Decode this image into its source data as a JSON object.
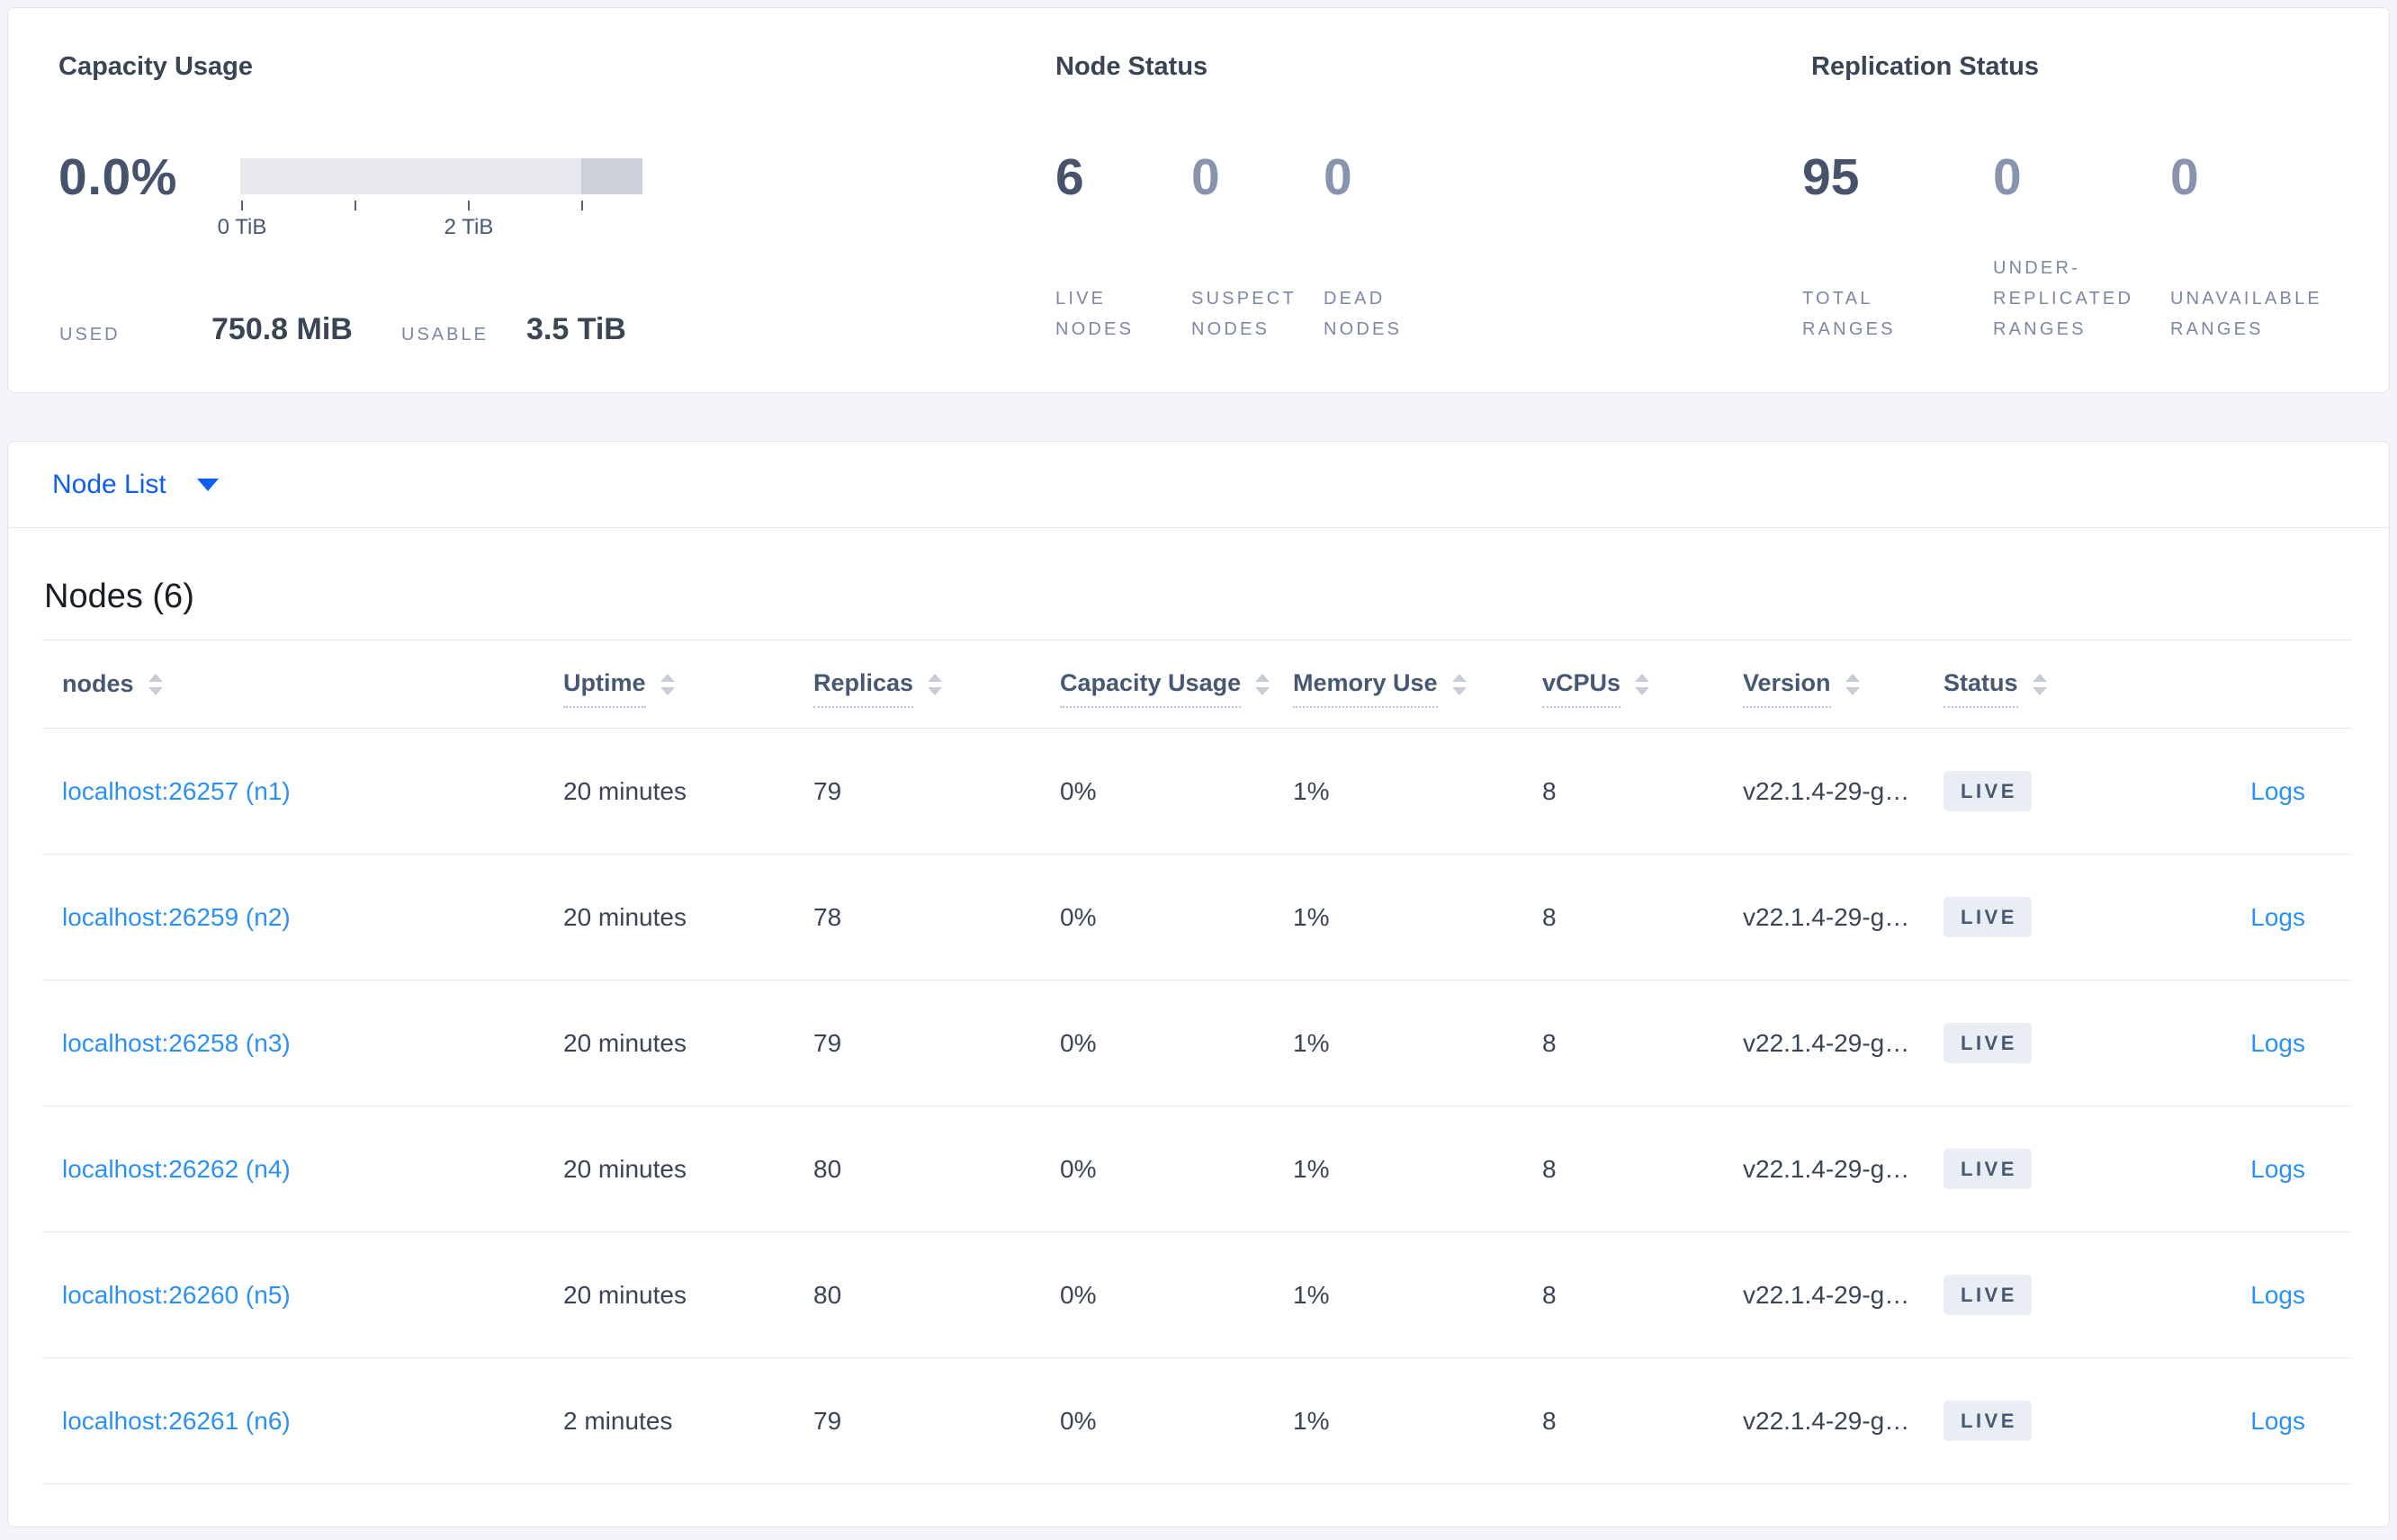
{
  "summary": {
    "capacity": {
      "title": "Capacity Usage",
      "percent": "0.0%",
      "axis_tick_labels": [
        "0 TiB",
        "2 TiB"
      ],
      "used_label": "USED",
      "used_value": "750.8 MiB",
      "usable_label": "USABLE",
      "usable_value": "3.5 TiB"
    },
    "node_status": {
      "title": "Node Status",
      "stats": [
        {
          "value": "6",
          "label": "LIVE\nNODES"
        },
        {
          "value": "0",
          "label": "SUSPECT\nNODES"
        },
        {
          "value": "0",
          "label": "DEAD\nNODES"
        }
      ]
    },
    "replication_status": {
      "title": "Replication Status",
      "stats": [
        {
          "value": "95",
          "label": "TOTAL\nRANGES"
        },
        {
          "value": "0",
          "label": "UNDER-\nREPLICATED\nRANGES"
        },
        {
          "value": "0",
          "label": "UNAVAILABLE\nRANGES"
        }
      ]
    }
  },
  "node_list": {
    "dropdown_label": "Node List"
  },
  "table": {
    "title": "Nodes (6)",
    "columns": [
      {
        "key": "node",
        "label": "nodes",
        "sortable": true,
        "tooltip": false
      },
      {
        "key": "uptime",
        "label": "Uptime",
        "sortable": true,
        "tooltip": true
      },
      {
        "key": "replicas",
        "label": "Replicas",
        "sortable": true,
        "tooltip": true
      },
      {
        "key": "capacity_usage",
        "label": "Capacity Usage",
        "sortable": true,
        "tooltip": true
      },
      {
        "key": "memory_use",
        "label": "Memory Use",
        "sortable": true,
        "tooltip": true
      },
      {
        "key": "vcpus",
        "label": "vCPUs",
        "sortable": true,
        "tooltip": true
      },
      {
        "key": "version",
        "label": "Version",
        "sortable": true,
        "tooltip": true
      },
      {
        "key": "status",
        "label": "Status",
        "sortable": true,
        "tooltip": true
      },
      {
        "key": "logs",
        "label": "",
        "sortable": false,
        "tooltip": false
      }
    ],
    "rows": [
      {
        "node": "localhost:26257 (n1)",
        "uptime": "20 minutes",
        "replicas": "79",
        "capacity_usage": "0%",
        "memory_use": "1%",
        "vcpus": "8",
        "version": "v22.1.4-29-g…",
        "status": "LIVE",
        "logs": "Logs"
      },
      {
        "node": "localhost:26259 (n2)",
        "uptime": "20 minutes",
        "replicas": "78",
        "capacity_usage": "0%",
        "memory_use": "1%",
        "vcpus": "8",
        "version": "v22.1.4-29-g…",
        "status": "LIVE",
        "logs": "Logs"
      },
      {
        "node": "localhost:26258 (n3)",
        "uptime": "20 minutes",
        "replicas": "79",
        "capacity_usage": "0%",
        "memory_use": "1%",
        "vcpus": "8",
        "version": "v22.1.4-29-g…",
        "status": "LIVE",
        "logs": "Logs"
      },
      {
        "node": "localhost:26262 (n4)",
        "uptime": "20 minutes",
        "replicas": "80",
        "capacity_usage": "0%",
        "memory_use": "1%",
        "vcpus": "8",
        "version": "v22.1.4-29-g…",
        "status": "LIVE",
        "logs": "Logs"
      },
      {
        "node": "localhost:26260 (n5)",
        "uptime": "20 minutes",
        "replicas": "80",
        "capacity_usage": "0%",
        "memory_use": "1%",
        "vcpus": "8",
        "version": "v22.1.4-29-g…",
        "status": "LIVE",
        "logs": "Logs"
      },
      {
        "node": "localhost:26261 (n6)",
        "uptime": "2 minutes",
        "replicas": "79",
        "capacity_usage": "0%",
        "memory_use": "1%",
        "vcpus": "8",
        "version": "v22.1.4-29-g…",
        "status": "LIVE",
        "logs": "Logs"
      }
    ]
  },
  "colors": {
    "page_bg": "#f4f5f9",
    "card_border": "#dfe3ea",
    "heading_text": "#394455",
    "stat_dark": "#46536b",
    "stat_muted": "#8893ae",
    "stat_label": "#7c87a3",
    "primary_blue": "#0d5ef5",
    "link_blue": "#2b90f5",
    "bar_track": "#e7e8ee",
    "bar_segment": "#cdd1dc",
    "badge_bg": "#e9edf4"
  }
}
